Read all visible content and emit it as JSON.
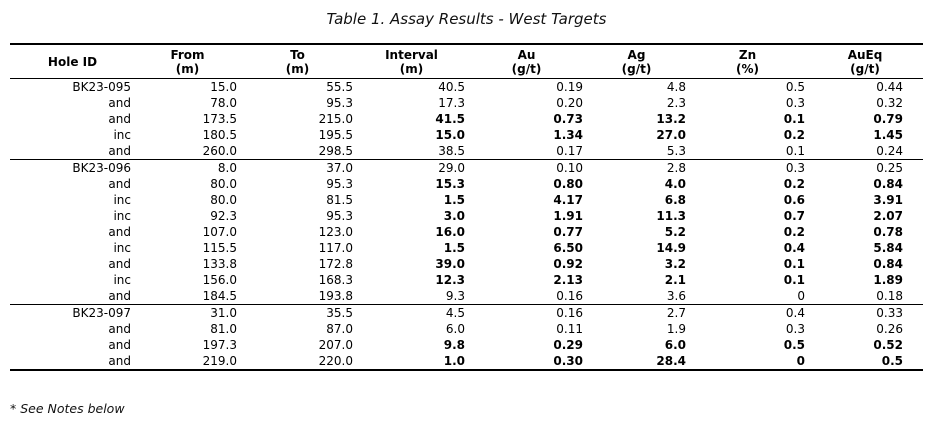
{
  "title": "Table 1. Assay Results - West Targets",
  "footnote": "* See Notes below",
  "colors": {
    "text": "#000000",
    "border": "#000000",
    "background": "#ffffff"
  },
  "table": {
    "columns": [
      {
        "label": "Hole ID",
        "unit": ""
      },
      {
        "label": "From",
        "unit": "(m)"
      },
      {
        "label": "To",
        "unit": "(m)"
      },
      {
        "label": "Interval",
        "unit": "(m)"
      },
      {
        "label": "Au",
        "unit": "(g/t)"
      },
      {
        "label": "Ag",
        "unit": "(g/t)"
      },
      {
        "label": "Zn",
        "unit": "(%)"
      },
      {
        "label": "AuEq",
        "unit": "(g/t)"
      }
    ],
    "groups": [
      {
        "hole_id": "BK23-095",
        "rows": [
          {
            "hole": "BK23-095",
            "from": "15.0",
            "to": "55.5",
            "interval": "40.5",
            "au": "0.19",
            "ag": "4.8",
            "zn": "0.5",
            "aueq": "0.44",
            "bold": false
          },
          {
            "hole": "and",
            "from": "78.0",
            "to": "95.3",
            "interval": "17.3",
            "au": "0.20",
            "ag": "2.3",
            "zn": "0.3",
            "aueq": "0.32",
            "bold": false
          },
          {
            "hole": "and",
            "from": "173.5",
            "to": "215.0",
            "interval": "41.5",
            "au": "0.73",
            "ag": "13.2",
            "zn": "0.1",
            "aueq": "0.79",
            "bold": true
          },
          {
            "hole": "inc",
            "from": "180.5",
            "to": "195.5",
            "interval": "15.0",
            "au": "1.34",
            "ag": "27.0",
            "zn": "0.2",
            "aueq": "1.45",
            "bold": true
          },
          {
            "hole": "and",
            "from": "260.0",
            "to": "298.5",
            "interval": "38.5",
            "au": "0.17",
            "ag": "5.3",
            "zn": "0.1",
            "aueq": "0.24",
            "bold": false
          }
        ]
      },
      {
        "hole_id": "BK23-096",
        "rows": [
          {
            "hole": "BK23-096",
            "from": "8.0",
            "to": "37.0",
            "interval": "29.0",
            "au": "0.10",
            "ag": "2.8",
            "zn": "0.3",
            "aueq": "0.25",
            "bold": false
          },
          {
            "hole": "and",
            "from": "80.0",
            "to": "95.3",
            "interval": "15.3",
            "au": "0.80",
            "ag": "4.0",
            "zn": "0.2",
            "aueq": "0.84",
            "bold": true
          },
          {
            "hole": "inc",
            "from": "80.0",
            "to": "81.5",
            "interval": "1.5",
            "au": "4.17",
            "ag": "6.8",
            "zn": "0.6",
            "aueq": "3.91",
            "bold": true
          },
          {
            "hole": "inc",
            "from": "92.3",
            "to": "95.3",
            "interval": "3.0",
            "au": "1.91",
            "ag": "11.3",
            "zn": "0.7",
            "aueq": "2.07",
            "bold": true
          },
          {
            "hole": "and",
            "from": "107.0",
            "to": "123.0",
            "interval": "16.0",
            "au": "0.77",
            "ag": "5.2",
            "zn": "0.2",
            "aueq": "0.78",
            "bold": true
          },
          {
            "hole": "inc",
            "from": "115.5",
            "to": "117.0",
            "interval": "1.5",
            "au": "6.50",
            "ag": "14.9",
            "zn": "0.4",
            "aueq": "5.84",
            "bold": true
          },
          {
            "hole": "and",
            "from": "133.8",
            "to": "172.8",
            "interval": "39.0",
            "au": "0.92",
            "ag": "3.2",
            "zn": "0.1",
            "aueq": "0.84",
            "bold": true
          },
          {
            "hole": "inc",
            "from": "156.0",
            "to": "168.3",
            "interval": "12.3",
            "au": "2.13",
            "ag": "2.1",
            "zn": "0.1",
            "aueq": "1.89",
            "bold": true
          },
          {
            "hole": "and",
            "from": "184.5",
            "to": "193.8",
            "interval": "9.3",
            "au": "0.16",
            "ag": "3.6",
            "zn": "0",
            "aueq": "0.18",
            "bold": false
          }
        ]
      },
      {
        "hole_id": "BK23-097",
        "rows": [
          {
            "hole": "BK23-097",
            "from": "31.0",
            "to": "35.5",
            "interval": "4.5",
            "au": "0.16",
            "ag": "2.7",
            "zn": "0.4",
            "aueq": "0.33",
            "bold": false
          },
          {
            "hole": "and",
            "from": "81.0",
            "to": "87.0",
            "interval": "6.0",
            "au": "0.11",
            "ag": "1.9",
            "zn": "0.3",
            "aueq": "0.26",
            "bold": false
          },
          {
            "hole": "and",
            "from": "197.3",
            "to": "207.0",
            "interval": "9.8",
            "au": "0.29",
            "ag": "6.0",
            "zn": "0.5",
            "aueq": "0.52",
            "bold": true
          },
          {
            "hole": "and",
            "from": "219.0",
            "to": "220.0",
            "interval": "1.0",
            "au": "0.30",
            "ag": "28.4",
            "zn": "0",
            "aueq": "0.5",
            "bold": true
          }
        ]
      }
    ]
  }
}
